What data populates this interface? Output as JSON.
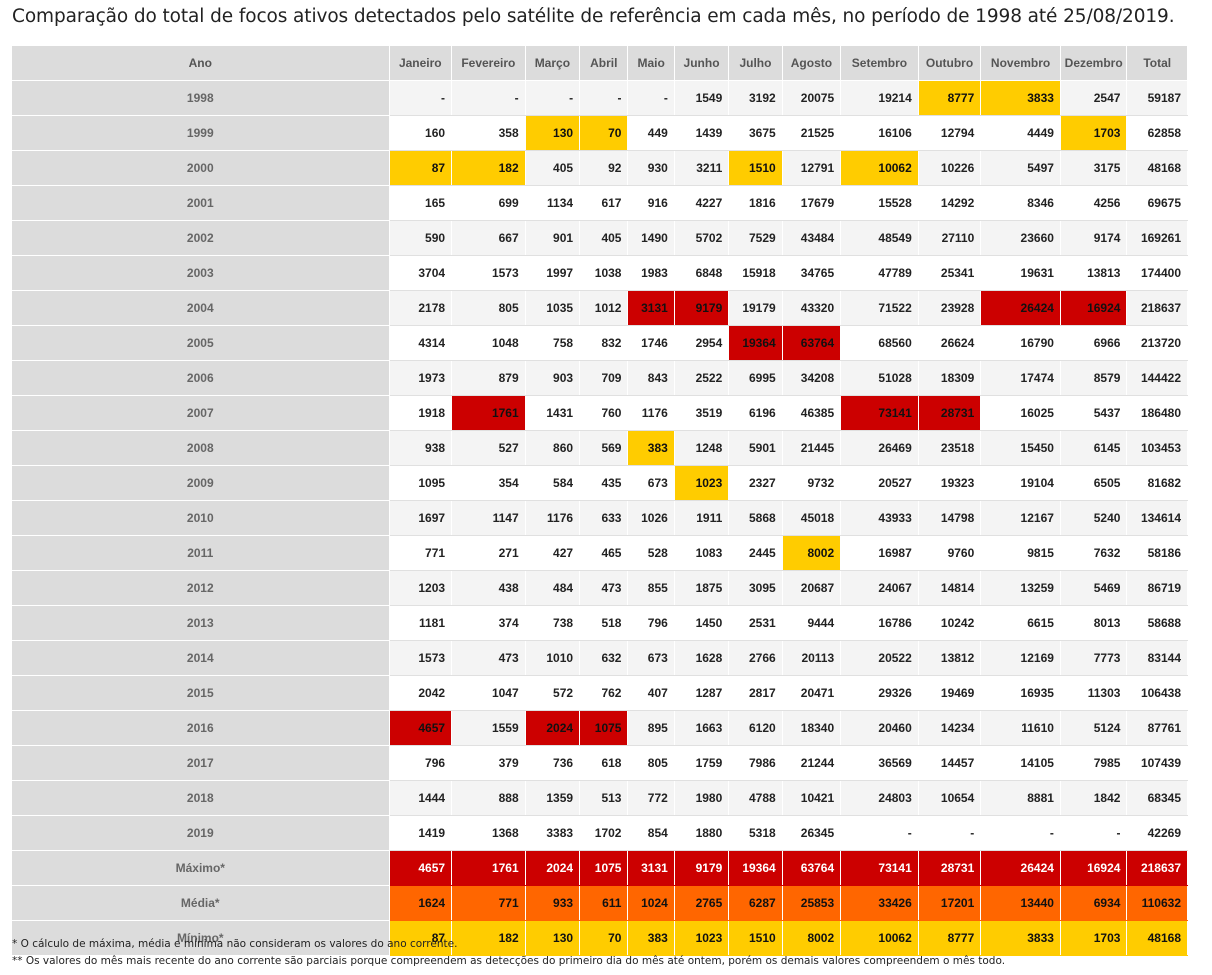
{
  "title": "Comparação do total de focos ativos detectados pelo satélite de referência em cada mês, no período de 1998 até 25/08/2019.",
  "table": {
    "headers": [
      "Ano",
      "Janeiro",
      "Fevereiro",
      "Março",
      "Abril",
      "Maio",
      "Junho",
      "Julho",
      "Agosto",
      "Setembro",
      "Outubro",
      "Novembro",
      "Dezembro",
      "Total"
    ],
    "rows": [
      {
        "year": "1998",
        "cells": [
          "-",
          "-",
          "-",
          "-",
          "-",
          "1549",
          "3192",
          "20075",
          "19214",
          "8777",
          "3833",
          "2547",
          "59187"
        ],
        "min": [
          9,
          10
        ],
        "max": []
      },
      {
        "year": "1999",
        "cells": [
          "160",
          "358",
          "130",
          "70",
          "449",
          "1439",
          "3675",
          "21525",
          "16106",
          "12794",
          "4449",
          "1703",
          "62858"
        ],
        "min": [
          2,
          3,
          11
        ],
        "max": []
      },
      {
        "year": "2000",
        "cells": [
          "87",
          "182",
          "405",
          "92",
          "930",
          "3211",
          "1510",
          "12791",
          "10062",
          "10226",
          "5497",
          "3175",
          "48168"
        ],
        "min": [
          0,
          1,
          6,
          8
        ],
        "max": []
      },
      {
        "year": "2001",
        "cells": [
          "165",
          "699",
          "1134",
          "617",
          "916",
          "4227",
          "1816",
          "17679",
          "15528",
          "14292",
          "8346",
          "4256",
          "69675"
        ],
        "min": [],
        "max": []
      },
      {
        "year": "2002",
        "cells": [
          "590",
          "667",
          "901",
          "405",
          "1490",
          "5702",
          "7529",
          "43484",
          "48549",
          "27110",
          "23660",
          "9174",
          "169261"
        ],
        "min": [],
        "max": []
      },
      {
        "year": "2003",
        "cells": [
          "3704",
          "1573",
          "1997",
          "1038",
          "1983",
          "6848",
          "15918",
          "34765",
          "47789",
          "25341",
          "19631",
          "13813",
          "174400"
        ],
        "min": [],
        "max": []
      },
      {
        "year": "2004",
        "cells": [
          "2178",
          "805",
          "1035",
          "1012",
          "3131",
          "9179",
          "19179",
          "43320",
          "71522",
          "23928",
          "26424",
          "16924",
          "218637"
        ],
        "min": [],
        "max": [
          4,
          5,
          10,
          11
        ]
      },
      {
        "year": "2005",
        "cells": [
          "4314",
          "1048",
          "758",
          "832",
          "1746",
          "2954",
          "19364",
          "63764",
          "68560",
          "26624",
          "16790",
          "6966",
          "213720"
        ],
        "min": [],
        "max": [
          6,
          7
        ]
      },
      {
        "year": "2006",
        "cells": [
          "1973",
          "879",
          "903",
          "709",
          "843",
          "2522",
          "6995",
          "34208",
          "51028",
          "18309",
          "17474",
          "8579",
          "144422"
        ],
        "min": [],
        "max": []
      },
      {
        "year": "2007",
        "cells": [
          "1918",
          "1761",
          "1431",
          "760",
          "1176",
          "3519",
          "6196",
          "46385",
          "73141",
          "28731",
          "16025",
          "5437",
          "186480"
        ],
        "min": [],
        "max": [
          1,
          8,
          9
        ]
      },
      {
        "year": "2008",
        "cells": [
          "938",
          "527",
          "860",
          "569",
          "383",
          "1248",
          "5901",
          "21445",
          "26469",
          "23518",
          "15450",
          "6145",
          "103453"
        ],
        "min": [
          4
        ],
        "max": []
      },
      {
        "year": "2009",
        "cells": [
          "1095",
          "354",
          "584",
          "435",
          "673",
          "1023",
          "2327",
          "9732",
          "20527",
          "19323",
          "19104",
          "6505",
          "81682"
        ],
        "min": [
          5
        ],
        "max": []
      },
      {
        "year": "2010",
        "cells": [
          "1697",
          "1147",
          "1176",
          "633",
          "1026",
          "1911",
          "5868",
          "45018",
          "43933",
          "14798",
          "12167",
          "5240",
          "134614"
        ],
        "min": [],
        "max": []
      },
      {
        "year": "2011",
        "cells": [
          "771",
          "271",
          "427",
          "465",
          "528",
          "1083",
          "2445",
          "8002",
          "16987",
          "9760",
          "9815",
          "7632",
          "58186"
        ],
        "min": [
          7
        ],
        "max": []
      },
      {
        "year": "2012",
        "cells": [
          "1203",
          "438",
          "484",
          "473",
          "855",
          "1875",
          "3095",
          "20687",
          "24067",
          "14814",
          "13259",
          "5469",
          "86719"
        ],
        "min": [],
        "max": []
      },
      {
        "year": "2013",
        "cells": [
          "1181",
          "374",
          "738",
          "518",
          "796",
          "1450",
          "2531",
          "9444",
          "16786",
          "10242",
          "6615",
          "8013",
          "58688"
        ],
        "min": [],
        "max": []
      },
      {
        "year": "2014",
        "cells": [
          "1573",
          "473",
          "1010",
          "632",
          "673",
          "1628",
          "2766",
          "20113",
          "20522",
          "13812",
          "12169",
          "7773",
          "83144"
        ],
        "min": [],
        "max": []
      },
      {
        "year": "2015",
        "cells": [
          "2042",
          "1047",
          "572",
          "762",
          "407",
          "1287",
          "2817",
          "20471",
          "29326",
          "19469",
          "16935",
          "11303",
          "106438"
        ],
        "min": [],
        "max": []
      },
      {
        "year": "2016",
        "cells": [
          "4657",
          "1559",
          "2024",
          "1075",
          "895",
          "1663",
          "6120",
          "18340",
          "20460",
          "14234",
          "11610",
          "5124",
          "87761"
        ],
        "min": [],
        "max": [
          0,
          2,
          3
        ]
      },
      {
        "year": "2017",
        "cells": [
          "796",
          "379",
          "736",
          "618",
          "805",
          "1759",
          "7986",
          "21244",
          "36569",
          "14457",
          "14105",
          "7985",
          "107439"
        ],
        "min": [],
        "max": []
      },
      {
        "year": "2018",
        "cells": [
          "1444",
          "888",
          "1359",
          "513",
          "772",
          "1980",
          "4788",
          "10421",
          "24803",
          "10654",
          "8881",
          "1842",
          "68345"
        ],
        "min": [],
        "max": []
      },
      {
        "year": "2019",
        "cells": [
          "1419",
          "1368",
          "3383",
          "1702",
          "854",
          "1880",
          "5318",
          "26345",
          "-",
          "-",
          "-",
          "-",
          "42269"
        ],
        "min": [],
        "max": []
      }
    ],
    "summary": [
      {
        "label": "Máximo*",
        "kind": "max",
        "cells": [
          "4657",
          "1761",
          "2024",
          "1075",
          "3131",
          "9179",
          "19364",
          "63764",
          "73141",
          "28731",
          "26424",
          "16924",
          "218637"
        ]
      },
      {
        "label": "Média*",
        "kind": "avg",
        "cells": [
          "1624",
          "771",
          "933",
          "611",
          "1024",
          "2765",
          "6287",
          "25853",
          "33426",
          "17201",
          "13440",
          "6934",
          "110632"
        ]
      },
      {
        "label": "Mínimo*",
        "kind": "min",
        "cells": [
          "87",
          "182",
          "130",
          "70",
          "383",
          "1023",
          "1510",
          "8002",
          "10062",
          "8777",
          "3833",
          "1703",
          "48168"
        ]
      }
    ],
    "colors": {
      "max": "#cc0000",
      "avg": "#ff6600",
      "min": "#ffcc00",
      "header": "#dcdcdc"
    }
  },
  "notes": [
    "* O cálculo de máxima, média e mínima não consideram os valores do ano corrente.",
    "** Os valores do mês mais recente do ano corrente são parciais porque compreendem as detecções do primeiro dia do mês até ontem, porém os demais valores compreendem o mês todo."
  ]
}
